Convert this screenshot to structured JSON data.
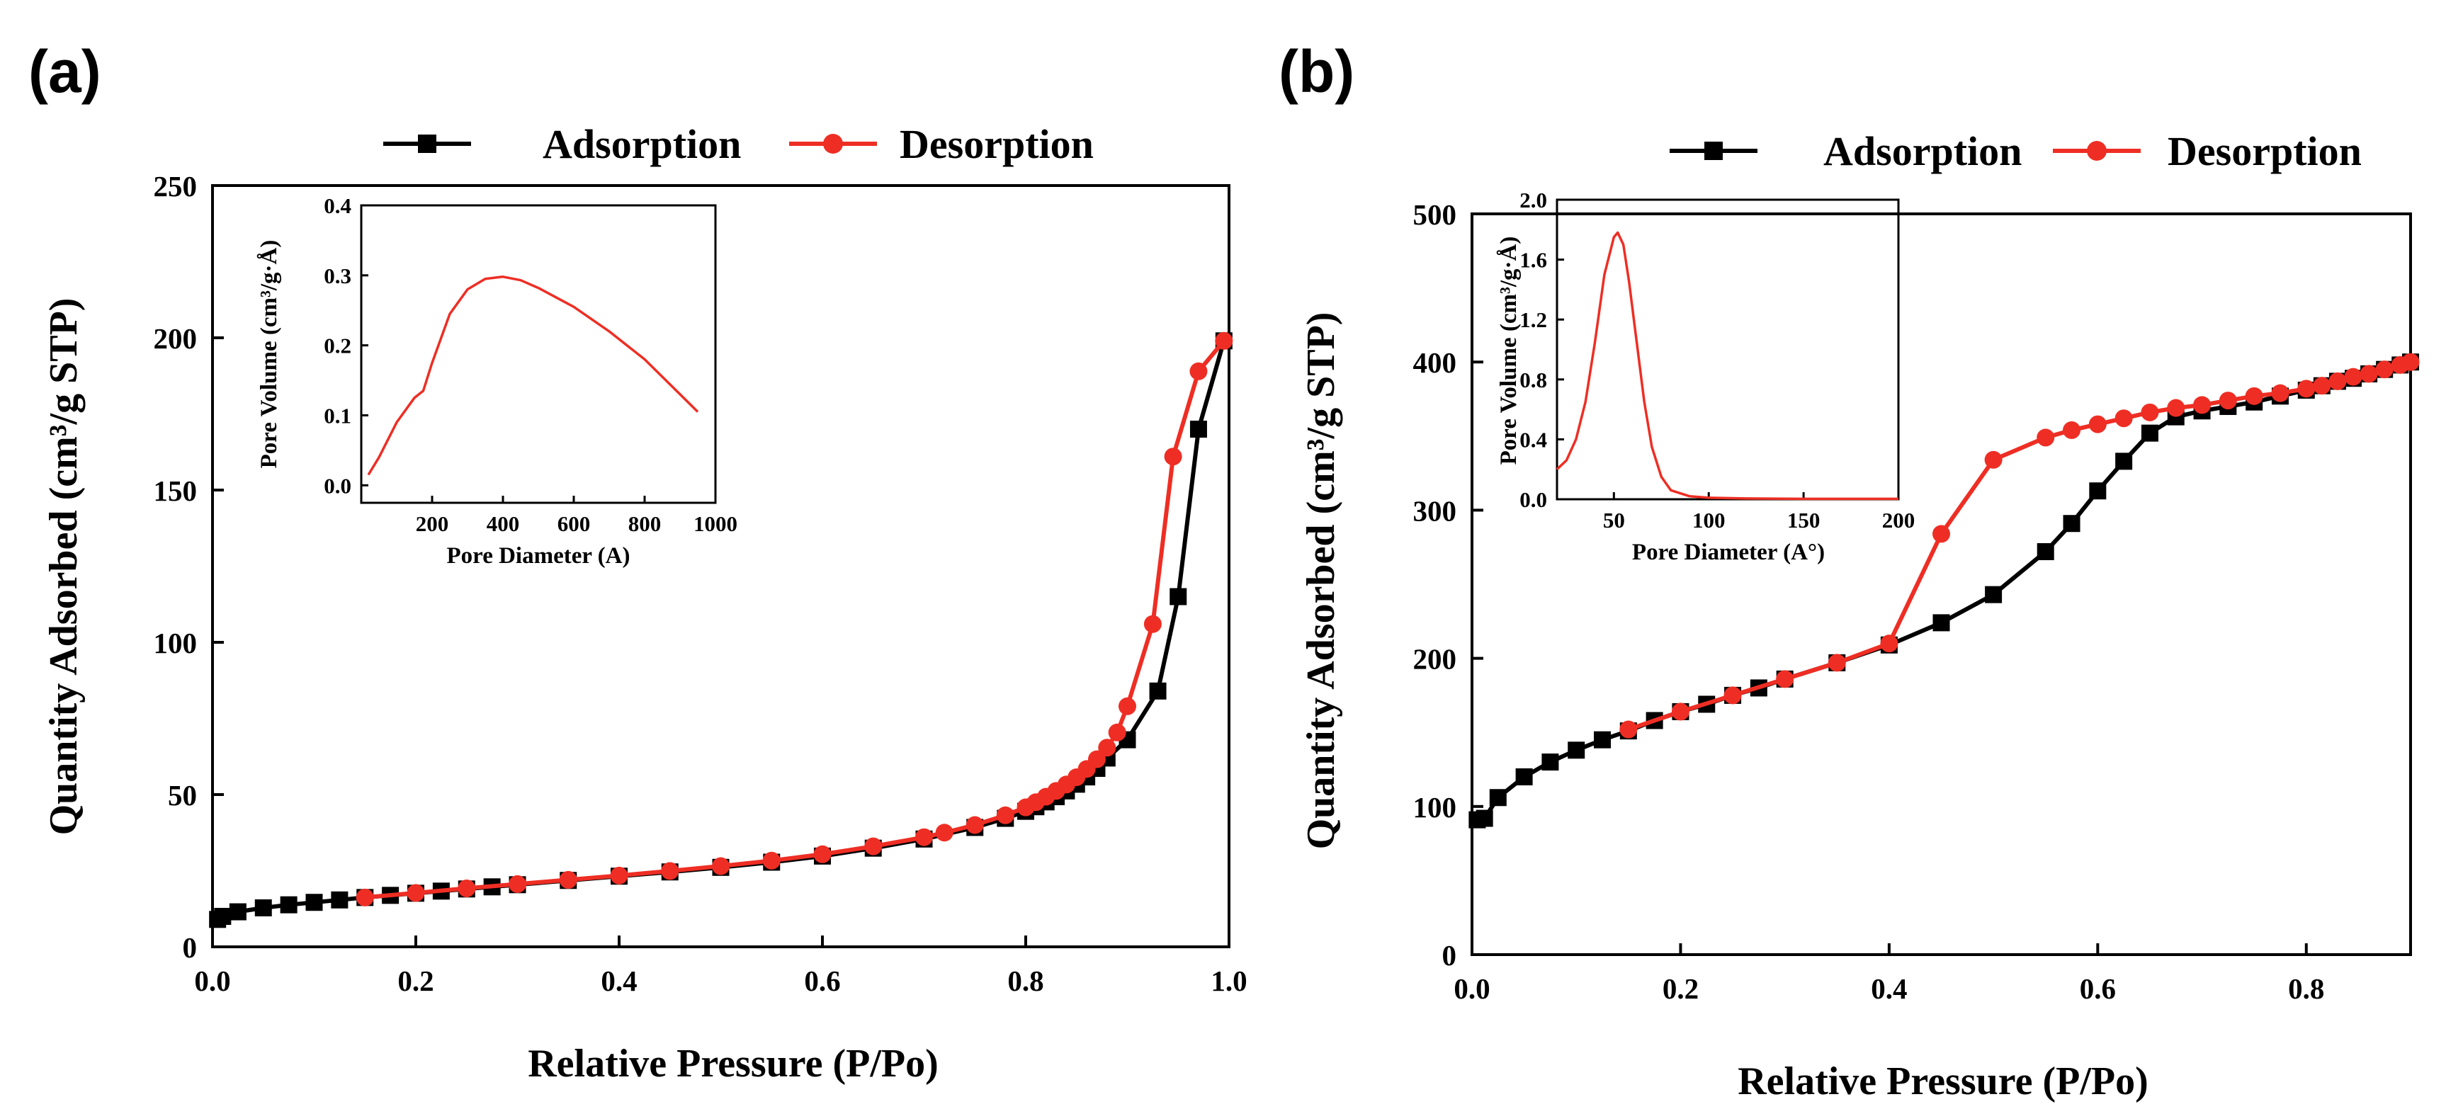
{
  "colors": {
    "adsorption": "#000000",
    "desorption": "#ee2e24",
    "inset_line": "#ee2e24"
  },
  "chart_data": [
    {
      "type": "line",
      "panel_label": "(a)",
      "xlabel": "Relative Pressure (P/Po)",
      "ylabel": "Quantity Adsorbed (cm³/g STP)",
      "xlim": [
        0,
        1.0
      ],
      "ylim": [
        0,
        250
      ],
      "xticks": [
        0,
        0.2,
        0.4,
        0.6,
        0.8,
        1.0
      ],
      "xtick_labels": [
        "0.0",
        "0.2",
        "0.4",
        "0.6",
        "0.8",
        "1.0"
      ],
      "yticks": [
        0,
        50,
        100,
        150,
        200,
        250
      ],
      "ytick_labels": [
        "0",
        "50",
        "100",
        "150",
        "200",
        "250"
      ],
      "legend": {
        "position": "top",
        "entries": [
          "Adsorption",
          "Desorption"
        ]
      },
      "series": [
        {
          "name": "Adsorption",
          "marker": "square",
          "color": "#000000",
          "x": [
            0.005,
            0.01,
            0.025,
            0.05,
            0.075,
            0.1,
            0.125,
            0.15,
            0.175,
            0.2,
            0.225,
            0.25,
            0.275,
            0.3,
            0.35,
            0.4,
            0.45,
            0.5,
            0.55,
            0.6,
            0.65,
            0.7,
            0.75,
            0.78,
            0.8,
            0.81,
            0.82,
            0.83,
            0.84,
            0.85,
            0.86,
            0.87,
            0.88,
            0.9,
            0.93,
            0.95,
            0.97,
            0.995
          ],
          "y": [
            9,
            10,
            11.5,
            12.8,
            13.8,
            14.6,
            15.4,
            16.2,
            16.9,
            17.6,
            18.3,
            19.0,
            19.7,
            20.4,
            21.8,
            23.2,
            24.6,
            26.1,
            27.8,
            29.8,
            32.4,
            35.4,
            39.2,
            42.2,
            44.5,
            46.0,
            47.6,
            49.3,
            51.2,
            53.4,
            55.8,
            58.6,
            62,
            68,
            84,
            115,
            170,
            199
          ]
        },
        {
          "name": "Desorption",
          "marker": "circle",
          "color": "#ee2e24",
          "x": [
            0.15,
            0.2,
            0.25,
            0.3,
            0.35,
            0.4,
            0.45,
            0.5,
            0.55,
            0.6,
            0.65,
            0.7,
            0.72,
            0.75,
            0.78,
            0.8,
            0.81,
            0.82,
            0.83,
            0.84,
            0.85,
            0.86,
            0.87,
            0.88,
            0.89,
            0.9,
            0.925,
            0.945,
            0.97,
            0.995
          ],
          "y": [
            16.2,
            17.7,
            19.2,
            20.6,
            22.0,
            23.4,
            24.9,
            26.5,
            28.3,
            30.4,
            33.0,
            36.0,
            37.5,
            40.0,
            43.2,
            45.8,
            47.5,
            49.3,
            51.2,
            53.3,
            55.7,
            58.4,
            61.6,
            65.4,
            70.4,
            79,
            106,
            161,
            189,
            199
          ]
        }
      ],
      "inset": {
        "type": "line",
        "xlabel": "Pore Diameter (A)",
        "ylabel": "Pore Volume (cm³/g·Å)",
        "xlim": [
          0,
          1000
        ],
        "ylim": [
          -0.025,
          0.4
        ],
        "xticks": [
          200,
          400,
          600,
          800,
          1000
        ],
        "xtick_labels": [
          "200",
          "400",
          "600",
          "800",
          "1000"
        ],
        "yticks": [
          0,
          0.1,
          0.2,
          0.3,
          0.4
        ],
        "ytick_labels": [
          "0.0",
          "0.1",
          "0.2",
          "0.3",
          "0.4"
        ],
        "x": [
          20,
          50,
          100,
          150,
          175,
          200,
          250,
          300,
          350,
          400,
          450,
          500,
          600,
          700,
          800,
          900,
          950
        ],
        "y": [
          0.015,
          0.04,
          0.09,
          0.125,
          0.135,
          0.175,
          0.245,
          0.28,
          0.295,
          0.298,
          0.293,
          0.282,
          0.255,
          0.22,
          0.18,
          0.13,
          0.105
        ]
      }
    },
    {
      "type": "line",
      "panel_label": "(b)",
      "xlabel": "Relative Pressure (P/Po)",
      "ylabel": "Quantity Adsorbed (cm³/g STP)",
      "xlim": [
        0,
        0.9
      ],
      "ylim": [
        0,
        500
      ],
      "xticks": [
        0,
        0.2,
        0.4,
        0.6,
        0.8
      ],
      "xtick_labels": [
        "0.0",
        "0.2",
        "0.4",
        "0.6",
        "0.8"
      ],
      "yticks": [
        0,
        100,
        200,
        300,
        400,
        500
      ],
      "ytick_labels": [
        "0",
        "100",
        "200",
        "300",
        "400",
        "500"
      ],
      "legend": {
        "position": "top",
        "entries": [
          "Adsorption",
          "Desorption"
        ]
      },
      "series": [
        {
          "name": "Adsorption",
          "marker": "square",
          "color": "#000000",
          "x": [
            0.005,
            0.012,
            0.025,
            0.05,
            0.075,
            0.1,
            0.125,
            0.15,
            0.175,
            0.2,
            0.225,
            0.25,
            0.275,
            0.3,
            0.35,
            0.4,
            0.45,
            0.5,
            0.55,
            0.575,
            0.6,
            0.625,
            0.65,
            0.675,
            0.7,
            0.725,
            0.75,
            0.775,
            0.8,
            0.815,
            0.83,
            0.845,
            0.86,
            0.875,
            0.89,
            0.9
          ],
          "y": [
            91,
            92,
            106,
            120,
            130,
            138,
            145,
            151,
            158,
            164,
            169,
            175,
            180,
            186,
            197,
            209,
            224,
            243,
            272,
            291,
            313,
            333,
            352,
            363,
            367,
            370,
            373,
            377,
            381,
            384,
            387,
            389,
            392,
            395,
            398,
            400
          ]
        },
        {
          "name": "Desorption",
          "marker": "circle",
          "color": "#ee2e24",
          "x": [
            0.15,
            0.2,
            0.25,
            0.3,
            0.35,
            0.4,
            0.45,
            0.5,
            0.55,
            0.575,
            0.6,
            0.625,
            0.65,
            0.675,
            0.7,
            0.725,
            0.75,
            0.775,
            0.8,
            0.815,
            0.83,
            0.845,
            0.86,
            0.875,
            0.89,
            0.9
          ],
          "y": [
            152,
            164,
            175,
            186,
            197,
            210,
            284,
            334,
            349,
            354,
            358,
            362,
            366,
            369,
            371,
            374,
            377,
            379,
            382,
            384,
            387,
            390,
            392,
            395,
            398,
            400
          ]
        }
      ],
      "inset": {
        "type": "line",
        "xlabel": "Pore Diameter (A°)",
        "ylabel": "Pore Volume (cm³/g·Å)",
        "xlim": [
          20,
          200
        ],
        "ylim": [
          0,
          2.0
        ],
        "xticks": [
          50,
          100,
          150,
          200
        ],
        "xtick_labels": [
          "50",
          "100",
          "150",
          "200"
        ],
        "yticks": [
          0,
          0.4,
          0.8,
          1.2,
          1.6,
          2.0
        ],
        "ytick_labels": [
          "0.0",
          "0.4",
          "0.8",
          "1.2",
          "1.6",
          "2.0"
        ],
        "x": [
          20,
          25,
          30,
          35,
          40,
          45,
          50,
          52,
          55,
          58,
          62,
          66,
          70,
          75,
          80,
          90,
          100,
          120,
          150,
          200
        ],
        "y": [
          0.2,
          0.26,
          0.4,
          0.65,
          1.05,
          1.5,
          1.75,
          1.78,
          1.7,
          1.45,
          1.05,
          0.65,
          0.35,
          0.15,
          0.06,
          0.02,
          0.01,
          0.005,
          0.003,
          0.003
        ]
      }
    }
  ]
}
